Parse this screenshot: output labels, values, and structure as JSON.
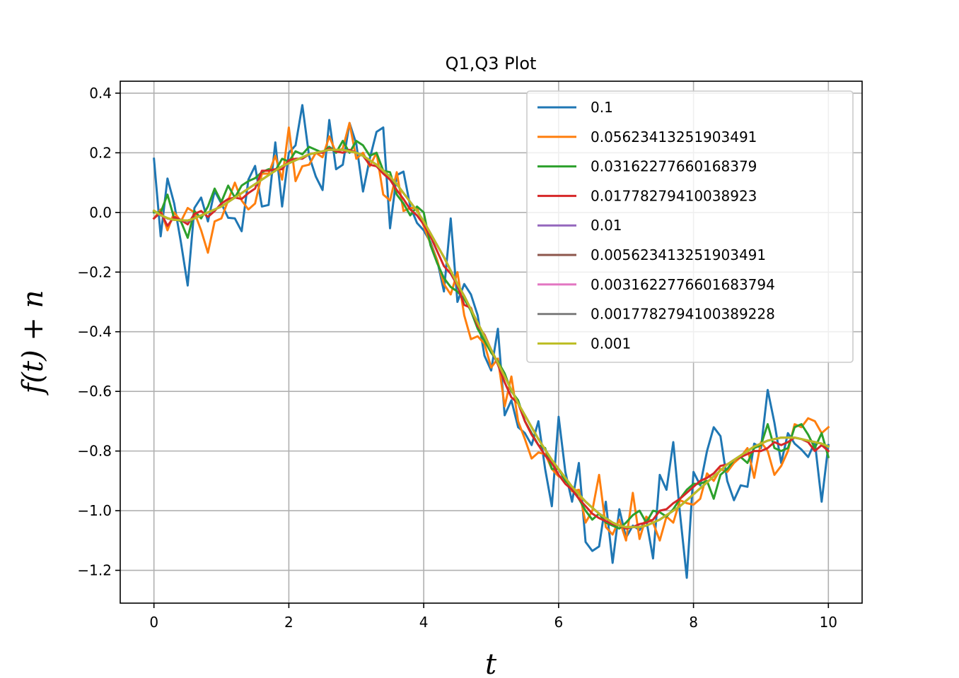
{
  "chart_data": {
    "type": "line",
    "title": "Q1,Q3 Plot",
    "xlabel": "t",
    "ylabel": "f(t) + n",
    "xlim": [
      -0.5,
      10.5
    ],
    "ylim": [
      -1.31,
      0.44
    ],
    "xticks": [
      0,
      2,
      4,
      6,
      8,
      10
    ],
    "xtick_labels": [
      "0",
      "2",
      "4",
      "6",
      "8",
      "10"
    ],
    "yticks": [
      0.4,
      0.2,
      0.0,
      -0.2,
      -0.4,
      -0.6,
      -0.8,
      -1.0,
      -1.2
    ],
    "ytick_labels": [
      "0.4",
      "0.2",
      "0.0",
      "−0.2",
      "−0.4",
      "−0.6",
      "−0.8",
      "−1.0",
      "−1.2"
    ],
    "grid": true,
    "legend_position": "upper-right",
    "x": [
      0.0,
      0.1,
      0.2,
      0.3,
      0.4,
      0.5,
      0.6,
      0.7,
      0.8,
      0.9,
      1.0,
      1.1,
      1.2,
      1.3,
      1.4,
      1.5,
      1.6,
      1.7,
      1.8,
      1.9,
      2.0,
      2.1,
      2.2,
      2.3,
      2.4,
      2.5,
      2.6,
      2.7,
      2.8,
      2.9,
      3.0,
      3.1,
      3.2,
      3.3,
      3.4,
      3.5,
      3.6,
      3.7,
      3.8,
      3.9,
      4.0,
      4.1,
      4.2,
      4.3,
      4.4,
      4.5,
      4.6,
      4.7,
      4.8,
      4.9,
      5.0,
      5.1,
      5.2,
      5.3,
      5.4,
      5.5,
      5.6,
      5.7,
      5.8,
      5.9,
      6.0,
      6.1,
      6.2,
      6.3,
      6.4,
      6.5,
      6.6,
      6.7,
      6.8,
      6.9,
      7.0,
      7.1,
      7.2,
      7.3,
      7.4,
      7.5,
      7.6,
      7.7,
      7.8,
      7.9,
      8.0,
      8.1,
      8.2,
      8.3,
      8.4,
      8.5,
      8.6,
      8.7,
      8.8,
      8.9,
      9.0,
      9.1,
      9.2,
      9.3,
      9.4,
      9.5,
      9.6,
      9.7,
      9.8,
      9.9,
      10.0
    ],
    "series": [
      {
        "name": "0.1",
        "color": "#1f77b4",
        "values": [
          0.18,
          -0.08,
          0.114,
          0.03,
          -0.1,
          -0.245,
          0.015,
          0.05,
          -0.03,
          0.072,
          0.03,
          -0.018,
          -0.02,
          -0.063,
          0.11,
          0.156,
          0.02,
          0.025,
          0.235,
          0.02,
          0.2,
          0.225,
          0.36,
          0.19,
          0.12,
          0.075,
          0.31,
          0.145,
          0.16,
          0.3,
          0.23,
          0.07,
          0.18,
          0.27,
          0.285,
          -0.053,
          0.125,
          0.137,
          0.02,
          -0.035,
          -0.06,
          -0.1,
          -0.16,
          -0.265,
          -0.02,
          -0.3,
          -0.24,
          -0.275,
          -0.345,
          -0.48,
          -0.53,
          -0.39,
          -0.68,
          -0.63,
          -0.72,
          -0.74,
          -0.78,
          -0.7,
          -0.86,
          -0.985,
          -0.685,
          -0.87,
          -0.97,
          -0.84,
          -1.105,
          -1.135,
          -1.12,
          -0.97,
          -1.175,
          -0.995,
          -1.09,
          -1.05,
          -1.065,
          -1.03,
          -1.16,
          -0.88,
          -0.93,
          -0.77,
          -1.01,
          -1.225,
          -0.87,
          -0.915,
          -0.8,
          -0.72,
          -0.75,
          -0.9,
          -0.965,
          -0.915,
          -0.92,
          -0.775,
          -0.79,
          -0.595,
          -0.705,
          -0.84,
          -0.74,
          -0.775,
          -0.795,
          -0.82,
          -0.77,
          -0.97,
          -0.78
        ]
      },
      {
        "name": "0.05623413251903491",
        "color": "#ff7f0e",
        "values": [
          -0.02,
          0.01,
          -0.06,
          0.0,
          -0.03,
          0.015,
          0.0,
          -0.06,
          -0.135,
          -0.03,
          -0.02,
          0.04,
          0.1,
          0.04,
          0.01,
          0.03,
          0.13,
          0.13,
          0.19,
          0.11,
          0.285,
          0.105,
          0.155,
          0.16,
          0.2,
          0.185,
          0.255,
          0.2,
          0.215,
          0.3,
          0.18,
          0.2,
          0.155,
          0.2,
          0.06,
          0.04,
          0.135,
          0.005,
          0.015,
          0.015,
          -0.045,
          -0.105,
          -0.16,
          -0.24,
          -0.275,
          -0.2,
          -0.345,
          -0.425,
          -0.415,
          -0.44,
          -0.52,
          -0.49,
          -0.65,
          -0.55,
          -0.7,
          -0.76,
          -0.825,
          -0.805,
          -0.81,
          -0.86,
          -0.885,
          -0.89,
          -0.935,
          -0.93,
          -1.04,
          -1.0,
          -0.88,
          -1.055,
          -1.08,
          -1.03,
          -1.1,
          -0.94,
          -1.095,
          -1.02,
          -1.04,
          -1.1,
          -1.02,
          -1.04,
          -0.965,
          -0.975,
          -0.98,
          -0.96,
          -0.875,
          -0.9,
          -0.86,
          -0.87,
          -0.84,
          -0.82,
          -0.79,
          -0.89,
          -0.77,
          -0.8,
          -0.88,
          -0.85,
          -0.8,
          -0.71,
          -0.72,
          -0.69,
          -0.7,
          -0.74,
          -0.72
        ]
      },
      {
        "name": "0.03162277660168379",
        "color": "#2ca02c",
        "values": [
          0.0,
          0.0,
          0.06,
          -0.02,
          -0.03,
          -0.085,
          0.005,
          -0.02,
          0.02,
          0.08,
          0.035,
          0.09,
          0.05,
          0.09,
          0.105,
          0.115,
          0.135,
          0.145,
          0.14,
          0.18,
          0.17,
          0.205,
          0.195,
          0.22,
          0.21,
          0.2,
          0.22,
          0.2,
          0.24,
          0.2,
          0.24,
          0.225,
          0.19,
          0.2,
          0.14,
          0.135,
          0.06,
          0.03,
          -0.01,
          0.02,
          0.0,
          -0.11,
          -0.17,
          -0.22,
          -0.25,
          -0.265,
          -0.29,
          -0.33,
          -0.39,
          -0.43,
          -0.47,
          -0.5,
          -0.54,
          -0.6,
          -0.63,
          -0.7,
          -0.74,
          -0.78,
          -0.79,
          -0.86,
          -0.86,
          -0.9,
          -0.92,
          -0.96,
          -1.0,
          -1.03,
          -1.01,
          -1.04,
          -1.05,
          -1.06,
          -1.04,
          -1.015,
          -1.0,
          -1.04,
          -1.0,
          -1.005,
          -1.02,
          -0.995,
          -0.96,
          -0.93,
          -0.91,
          -0.91,
          -0.9,
          -0.96,
          -0.88,
          -0.86,
          -0.83,
          -0.82,
          -0.84,
          -0.79,
          -0.78,
          -0.71,
          -0.79,
          -0.8,
          -0.79,
          -0.72,
          -0.71,
          -0.745,
          -0.79,
          -0.74,
          -0.82
        ]
      },
      {
        "name": "0.01778279410038923",
        "color": "#d62728",
        "values": [
          -0.02,
          0.0,
          -0.045,
          -0.015,
          -0.025,
          -0.04,
          -0.005,
          0.005,
          -0.015,
          0.005,
          0.03,
          0.045,
          0.05,
          0.045,
          0.065,
          0.08,
          0.14,
          0.14,
          0.145,
          0.145,
          0.175,
          0.18,
          0.18,
          0.195,
          0.2,
          0.2,
          0.215,
          0.205,
          0.2,
          0.21,
          0.2,
          0.19,
          0.16,
          0.155,
          0.13,
          0.11,
          0.075,
          0.045,
          0.01,
          -0.01,
          -0.04,
          -0.08,
          -0.13,
          -0.18,
          -0.205,
          -0.245,
          -0.31,
          -0.32,
          -0.38,
          -0.41,
          -0.46,
          -0.51,
          -0.57,
          -0.62,
          -0.64,
          -0.7,
          -0.745,
          -0.78,
          -0.815,
          -0.84,
          -0.88,
          -0.91,
          -0.93,
          -0.96,
          -0.985,
          -1.01,
          -1.025,
          -1.035,
          -1.045,
          -1.05,
          -1.06,
          -1.055,
          -1.045,
          -1.04,
          -1.03,
          -1.0,
          -0.995,
          -0.975,
          -0.96,
          -0.94,
          -0.92,
          -0.9,
          -0.89,
          -0.875,
          -0.85,
          -0.845,
          -0.83,
          -0.82,
          -0.81,
          -0.8,
          -0.8,
          -0.79,
          -0.77,
          -0.78,
          -0.77,
          -0.755,
          -0.76,
          -0.77,
          -0.8,
          -0.78,
          -0.8
        ]
      },
      {
        "name": "0.01",
        "color": "#9467bd",
        "values": [
          0.005,
          -0.01,
          -0.02,
          -0.025,
          -0.025,
          -0.03,
          -0.02,
          -0.01,
          0.0,
          0.01,
          0.02,
          0.035,
          0.05,
          0.065,
          0.08,
          0.095,
          0.11,
          0.125,
          0.14,
          0.155,
          0.165,
          0.175,
          0.185,
          0.195,
          0.2,
          0.205,
          0.21,
          0.21,
          0.21,
          0.205,
          0.2,
          0.19,
          0.175,
          0.16,
          0.14,
          0.12,
          0.095,
          0.065,
          0.035,
          0.005,
          -0.03,
          -0.07,
          -0.11,
          -0.15,
          -0.195,
          -0.24,
          -0.28,
          -0.325,
          -0.37,
          -0.415,
          -0.46,
          -0.505,
          -0.55,
          -0.595,
          -0.64,
          -0.68,
          -0.72,
          -0.76,
          -0.795,
          -0.83,
          -0.86,
          -0.89,
          -0.92,
          -0.945,
          -0.97,
          -0.99,
          -1.01,
          -1.025,
          -1.04,
          -1.05,
          -1.055,
          -1.055,
          -1.055,
          -1.05,
          -1.04,
          -1.03,
          -1.015,
          -1.0,
          -0.985,
          -0.965,
          -0.945,
          -0.925,
          -0.905,
          -0.885,
          -0.865,
          -0.845,
          -0.83,
          -0.815,
          -0.8,
          -0.785,
          -0.775,
          -0.765,
          -0.76,
          -0.755,
          -0.755,
          -0.755,
          -0.76,
          -0.765,
          -0.77,
          -0.775,
          -0.785
        ]
      },
      {
        "name": "0.005623413251903491",
        "color": "#8c564b",
        "values": [
          0.005,
          -0.008,
          -0.02,
          -0.025,
          -0.026,
          -0.028,
          -0.02,
          -0.01,
          0.0,
          0.01,
          0.02,
          0.035,
          0.05,
          0.065,
          0.08,
          0.095,
          0.11,
          0.125,
          0.14,
          0.155,
          0.165,
          0.175,
          0.185,
          0.195,
          0.2,
          0.205,
          0.21,
          0.21,
          0.21,
          0.205,
          0.2,
          0.19,
          0.175,
          0.16,
          0.14,
          0.12,
          0.095,
          0.065,
          0.035,
          0.005,
          -0.03,
          -0.07,
          -0.11,
          -0.15,
          -0.195,
          -0.24,
          -0.28,
          -0.325,
          -0.37,
          -0.415,
          -0.46,
          -0.505,
          -0.55,
          -0.595,
          -0.64,
          -0.68,
          -0.72,
          -0.76,
          -0.795,
          -0.83,
          -0.86,
          -0.89,
          -0.92,
          -0.945,
          -0.97,
          -0.99,
          -1.01,
          -1.025,
          -1.04,
          -1.05,
          -1.055,
          -1.055,
          -1.055,
          -1.05,
          -1.04,
          -1.03,
          -1.015,
          -1.0,
          -0.985,
          -0.965,
          -0.945,
          -0.925,
          -0.905,
          -0.885,
          -0.865,
          -0.845,
          -0.83,
          -0.815,
          -0.8,
          -0.785,
          -0.775,
          -0.765,
          -0.76,
          -0.755,
          -0.755,
          -0.755,
          -0.76,
          -0.765,
          -0.77,
          -0.775,
          -0.785
        ]
      },
      {
        "name": "0.0031622776601683794",
        "color": "#e377c2",
        "values": [
          0.006,
          -0.009,
          -0.019,
          -0.025,
          -0.026,
          -0.027,
          -0.02,
          -0.01,
          0.0,
          0.01,
          0.02,
          0.035,
          0.05,
          0.065,
          0.08,
          0.095,
          0.11,
          0.125,
          0.14,
          0.155,
          0.165,
          0.175,
          0.185,
          0.195,
          0.2,
          0.205,
          0.21,
          0.21,
          0.21,
          0.205,
          0.2,
          0.19,
          0.175,
          0.16,
          0.14,
          0.12,
          0.095,
          0.065,
          0.035,
          0.005,
          -0.03,
          -0.07,
          -0.11,
          -0.15,
          -0.195,
          -0.24,
          -0.28,
          -0.325,
          -0.37,
          -0.415,
          -0.46,
          -0.505,
          -0.55,
          -0.595,
          -0.64,
          -0.68,
          -0.72,
          -0.76,
          -0.795,
          -0.83,
          -0.86,
          -0.89,
          -0.92,
          -0.945,
          -0.97,
          -0.99,
          -1.01,
          -1.025,
          -1.04,
          -1.05,
          -1.055,
          -1.055,
          -1.055,
          -1.05,
          -1.04,
          -1.03,
          -1.015,
          -1.0,
          -0.985,
          -0.965,
          -0.945,
          -0.925,
          -0.905,
          -0.885,
          -0.865,
          -0.845,
          -0.83,
          -0.815,
          -0.8,
          -0.785,
          -0.775,
          -0.765,
          -0.76,
          -0.755,
          -0.755,
          -0.755,
          -0.76,
          -0.765,
          -0.77,
          -0.775,
          -0.785
        ]
      },
      {
        "name": "0.0017782794100389228",
        "color": "#7f7f7f",
        "values": [
          0.006,
          -0.009,
          -0.019,
          -0.025,
          -0.026,
          -0.027,
          -0.02,
          -0.01,
          0.0,
          0.01,
          0.02,
          0.035,
          0.05,
          0.065,
          0.08,
          0.095,
          0.11,
          0.125,
          0.14,
          0.155,
          0.165,
          0.175,
          0.185,
          0.195,
          0.2,
          0.205,
          0.21,
          0.21,
          0.21,
          0.205,
          0.2,
          0.19,
          0.175,
          0.16,
          0.14,
          0.12,
          0.095,
          0.065,
          0.035,
          0.005,
          -0.03,
          -0.07,
          -0.11,
          -0.15,
          -0.195,
          -0.24,
          -0.28,
          -0.325,
          -0.37,
          -0.415,
          -0.46,
          -0.505,
          -0.55,
          -0.595,
          -0.64,
          -0.68,
          -0.72,
          -0.76,
          -0.795,
          -0.83,
          -0.86,
          -0.89,
          -0.92,
          -0.945,
          -0.97,
          -0.99,
          -1.01,
          -1.025,
          -1.04,
          -1.05,
          -1.055,
          -1.055,
          -1.055,
          -1.05,
          -1.04,
          -1.03,
          -1.015,
          -1.0,
          -0.985,
          -0.965,
          -0.945,
          -0.925,
          -0.905,
          -0.885,
          -0.865,
          -0.845,
          -0.83,
          -0.815,
          -0.8,
          -0.785,
          -0.775,
          -0.765,
          -0.76,
          -0.755,
          -0.755,
          -0.755,
          -0.76,
          -0.765,
          -0.77,
          -0.775,
          -0.785
        ]
      },
      {
        "name": "0.001",
        "color": "#bcbd22",
        "values": [
          0.006,
          -0.009,
          -0.019,
          -0.025,
          -0.026,
          -0.027,
          -0.02,
          -0.01,
          0.0,
          0.01,
          0.02,
          0.035,
          0.05,
          0.065,
          0.08,
          0.095,
          0.11,
          0.125,
          0.14,
          0.155,
          0.165,
          0.175,
          0.185,
          0.195,
          0.2,
          0.205,
          0.21,
          0.21,
          0.21,
          0.205,
          0.2,
          0.19,
          0.175,
          0.16,
          0.14,
          0.12,
          0.095,
          0.065,
          0.035,
          0.005,
          -0.03,
          -0.07,
          -0.11,
          -0.15,
          -0.195,
          -0.24,
          -0.28,
          -0.325,
          -0.37,
          -0.415,
          -0.46,
          -0.505,
          -0.55,
          -0.595,
          -0.64,
          -0.68,
          -0.72,
          -0.76,
          -0.795,
          -0.83,
          -0.86,
          -0.89,
          -0.92,
          -0.945,
          -0.97,
          -0.99,
          -1.01,
          -1.025,
          -1.04,
          -1.05,
          -1.055,
          -1.055,
          -1.055,
          -1.05,
          -1.04,
          -1.03,
          -1.015,
          -1.0,
          -0.985,
          -0.965,
          -0.945,
          -0.925,
          -0.905,
          -0.885,
          -0.865,
          -0.845,
          -0.83,
          -0.815,
          -0.8,
          -0.785,
          -0.775,
          -0.765,
          -0.76,
          -0.755,
          -0.755,
          -0.755,
          -0.76,
          -0.765,
          -0.77,
          -0.775,
          -0.785
        ]
      }
    ]
  }
}
